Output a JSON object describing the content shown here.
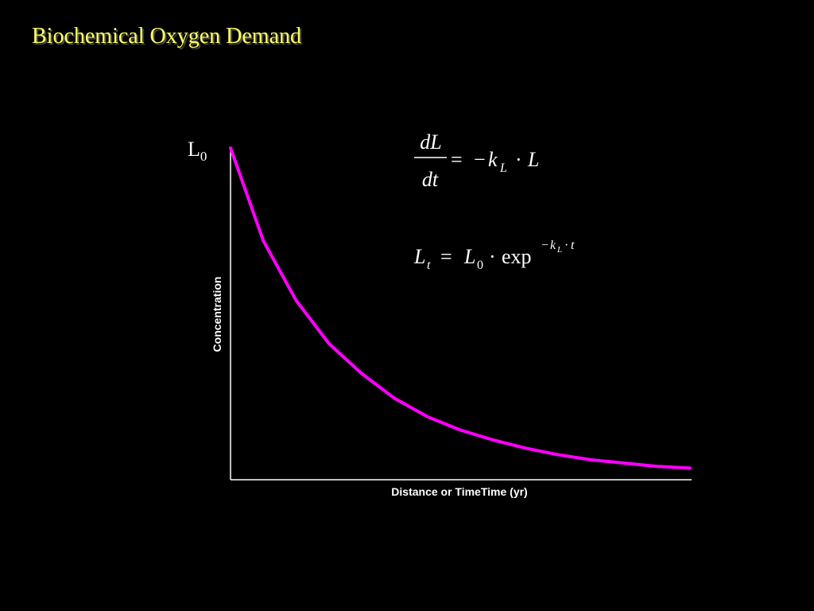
{
  "slide": {
    "title": "Biochemical Oxygen Demand"
  },
  "chart_data": {
    "type": "line",
    "xlabel": "Distance or TimeTime (yr)",
    "ylabel": "Concentration",
    "y_start_label": {
      "main": "L",
      "sub": "0"
    },
    "series": [
      {
        "color": "#ff00ff",
        "x": [
          0,
          0.5,
          1,
          1.5,
          2,
          2.5,
          3,
          3.5,
          4,
          4.5,
          5,
          5.5,
          6,
          6.5,
          7
        ],
        "y": [
          1.0,
          0.72,
          0.54,
          0.41,
          0.32,
          0.245,
          0.19,
          0.15,
          0.12,
          0.095,
          0.075,
          0.06,
          0.05,
          0.04,
          0.035
        ]
      }
    ],
    "xlim": [
      0,
      7
    ],
    "ylim": [
      0,
      1.0
    ]
  },
  "equations": {
    "eq1": {
      "num": "dL",
      "den": "dt",
      "eq": "=",
      "minus": "−",
      "k": "k",
      "k_sub": "L",
      "dot": "·",
      "L": "L"
    },
    "eq2": {
      "Lt": "L",
      "t_sub": "t",
      "eq": "=",
      "L0": "L",
      "zero_sub": "0",
      "dot": "·",
      "exp": "exp",
      "sup_minus": "−",
      "sup_k": "k",
      "sup_k_sub": "L",
      "sup_dot": "·",
      "sup_t": "t"
    }
  }
}
